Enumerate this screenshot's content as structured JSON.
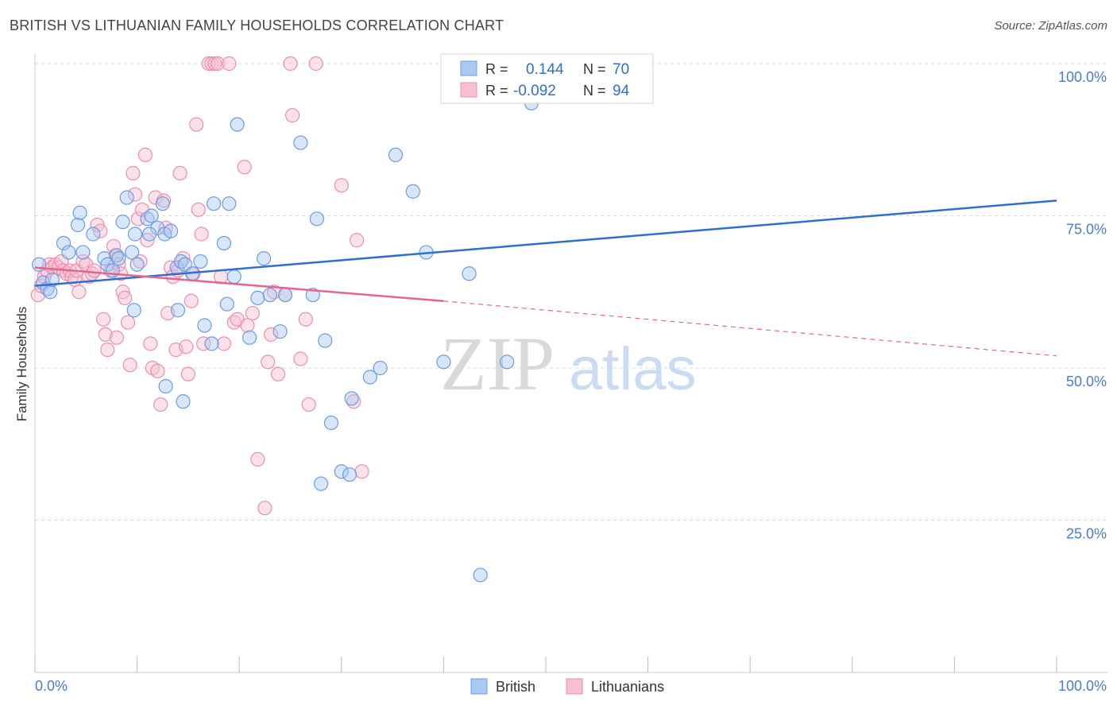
{
  "header": {
    "title": "BRITISH VS LITHUANIAN FAMILY HOUSEHOLDS CORRELATION CHART",
    "source": "Source: ZipAtlas.com"
  },
  "watermark": {
    "zip": "ZIP",
    "atlas": "atlas"
  },
  "legend_box": {
    "rows": [
      {
        "r_label": "R =",
        "r_value": "0.144",
        "n_label": "N =",
        "n_value": "70",
        "color": "#7aa6e6"
      },
      {
        "r_label": "R =",
        "r_value": "-0.092",
        "n_label": "N =",
        "n_value": "94",
        "color": "#f1a1bb"
      }
    ]
  },
  "bottom_legend": {
    "british": "British",
    "lithuanians": "Lithuanians"
  },
  "colors": {
    "british_fill": "#a9c8f2",
    "british_stroke": "#6f9be0",
    "british_line": "#2f6fd0",
    "lith_fill": "#f7bfd0",
    "lith_stroke": "#ec8fae",
    "lith_line": "#e26592",
    "tick_label": "#4a7bd0",
    "grid": "#d9d9d9"
  },
  "chart_data": {
    "type": "scatter",
    "title": "BRITISH VS LITHUANIAN FAMILY HOUSEHOLDS CORRELATION CHART",
    "xlabel": "",
    "ylabel": "Family Households",
    "xlim": [
      0,
      100
    ],
    "ylim": [
      0,
      100
    ],
    "x_tick_labels": [
      "0.0%",
      "100.0%"
    ],
    "y_tick_labels": [
      "25.0%",
      "50.0%",
      "75.0%",
      "100.0%"
    ],
    "y_ticks": [
      25,
      50,
      75,
      100
    ],
    "grid": true,
    "legend_position": "top-center",
    "series": [
      {
        "name": "British",
        "r": 0.144,
        "n": 70,
        "trend": {
          "x": [
            0,
            100
          ],
          "y": [
            63.5,
            77.5
          ]
        },
        "points": [
          [
            0.4,
            67
          ],
          [
            0.8,
            64
          ],
          [
            1.2,
            63
          ],
          [
            1.5,
            62.5
          ],
          [
            1.7,
            64.5
          ],
          [
            2.8,
            70.5
          ],
          [
            3.3,
            69
          ],
          [
            4.2,
            73.5
          ],
          [
            4.4,
            75.5
          ],
          [
            4.7,
            69
          ],
          [
            5.7,
            72
          ],
          [
            6.8,
            68
          ],
          [
            7.1,
            67
          ],
          [
            8.0,
            68.5
          ],
          [
            8.2,
            68
          ],
          [
            7.6,
            66
          ],
          [
            8.6,
            74
          ],
          [
            9.0,
            78
          ],
          [
            9.5,
            69
          ],
          [
            10.0,
            67
          ],
          [
            11.0,
            74.5
          ],
          [
            11.4,
            75
          ],
          [
            12.0,
            73
          ],
          [
            9.8,
            72
          ],
          [
            11.2,
            72
          ],
          [
            12.5,
            77
          ],
          [
            12.7,
            72
          ],
          [
            13.3,
            72.5
          ],
          [
            13.9,
            66.5
          ],
          [
            14.3,
            67.5
          ],
          [
            14.7,
            67
          ],
          [
            15.4,
            65.5
          ],
          [
            16.2,
            67.5
          ],
          [
            16.6,
            57
          ],
          [
            17.3,
            54
          ],
          [
            17.5,
            77
          ],
          [
            18.5,
            70.5
          ],
          [
            18.8,
            60.5
          ],
          [
            19.0,
            77
          ],
          [
            19.5,
            65
          ],
          [
            19.8,
            90
          ],
          [
            21.0,
            55
          ],
          [
            21.8,
            61.5
          ],
          [
            22.4,
            68
          ],
          [
            23.0,
            62
          ],
          [
            24.0,
            56
          ],
          [
            26.0,
            87
          ],
          [
            27.2,
            62
          ],
          [
            27.6,
            74.5
          ],
          [
            28.4,
            54.5
          ],
          [
            29.0,
            41
          ],
          [
            30.0,
            33
          ],
          [
            30.8,
            32.5
          ],
          [
            31.0,
            45
          ],
          [
            32.8,
            48.5
          ],
          [
            33.8,
            50
          ],
          [
            35.3,
            85
          ],
          [
            37.0,
            79
          ],
          [
            38.3,
            69
          ],
          [
            40.0,
            51
          ],
          [
            42.5,
            65.5
          ],
          [
            43.6,
            16
          ],
          [
            46.2,
            51
          ],
          [
            48.6,
            93.5
          ],
          [
            9.7,
            59.5
          ],
          [
            14.0,
            59.5
          ],
          [
            12.8,
            47
          ],
          [
            14.5,
            44.5
          ],
          [
            24.5,
            62
          ],
          [
            28.0,
            31
          ]
        ]
      },
      {
        "name": "Lithuanians",
        "r": -0.092,
        "n": 94,
        "trend": {
          "x": [
            0,
            40
          ],
          "y": [
            66.5,
            61
          ],
          "dashed_to": {
            "x": 100,
            "y": 52
          }
        },
        "points": [
          [
            0.3,
            62
          ],
          [
            0.6,
            63.5
          ],
          [
            0.9,
            65
          ],
          [
            1.2,
            66
          ],
          [
            1.4,
            67
          ],
          [
            1.7,
            66.5
          ],
          [
            2.0,
            67
          ],
          [
            2.3,
            66.5
          ],
          [
            2.6,
            67.5
          ],
          [
            2.8,
            66
          ],
          [
            3.1,
            65.5
          ],
          [
            3.4,
            66
          ],
          [
            3.6,
            65
          ],
          [
            3.9,
            64.5
          ],
          [
            4.1,
            66
          ],
          [
            4.3,
            62.5
          ],
          [
            4.7,
            67.5
          ],
          [
            5.0,
            67
          ],
          [
            5.3,
            65
          ],
          [
            5.6,
            65.5
          ],
          [
            5.8,
            66
          ],
          [
            6.1,
            73.5
          ],
          [
            6.4,
            72.5
          ],
          [
            6.7,
            58
          ],
          [
            6.9,
            55.5
          ],
          [
            7.1,
            53
          ],
          [
            7.4,
            66
          ],
          [
            7.7,
            70
          ],
          [
            7.9,
            68.5
          ],
          [
            8.2,
            67
          ],
          [
            8.4,
            65.5
          ],
          [
            8.6,
            62.5
          ],
          [
            8.8,
            61.5
          ],
          [
            9.1,
            57.5
          ],
          [
            9.3,
            50.5
          ],
          [
            9.6,
            82
          ],
          [
            9.8,
            78.5
          ],
          [
            10.1,
            74.5
          ],
          [
            10.3,
            67.5
          ],
          [
            10.5,
            76
          ],
          [
            10.8,
            85
          ],
          [
            11.0,
            71
          ],
          [
            11.3,
            54
          ],
          [
            11.5,
            50
          ],
          [
            11.8,
            78
          ],
          [
            12.0,
            49.5
          ],
          [
            12.3,
            44
          ],
          [
            12.6,
            77.5
          ],
          [
            12.8,
            73
          ],
          [
            13.0,
            59
          ],
          [
            13.3,
            66.5
          ],
          [
            13.5,
            65
          ],
          [
            13.8,
            53
          ],
          [
            14.0,
            66
          ],
          [
            14.2,
            82
          ],
          [
            14.5,
            68
          ],
          [
            14.8,
            53.5
          ],
          [
            15.0,
            49
          ],
          [
            15.3,
            61
          ],
          [
            15.5,
            65.5
          ],
          [
            15.8,
            90
          ],
          [
            16.0,
            76
          ],
          [
            16.3,
            72
          ],
          [
            16.5,
            54
          ],
          [
            17.0,
            100
          ],
          [
            17.3,
            100
          ],
          [
            17.6,
            100
          ],
          [
            17.9,
            100
          ],
          [
            18.2,
            65
          ],
          [
            18.5,
            54
          ],
          [
            19.0,
            100
          ],
          [
            19.5,
            57.5
          ],
          [
            19.8,
            58
          ],
          [
            20.5,
            83
          ],
          [
            20.8,
            57
          ],
          [
            21.3,
            59
          ],
          [
            21.8,
            35
          ],
          [
            22.5,
            27
          ],
          [
            22.8,
            51
          ],
          [
            23.1,
            55.5
          ],
          [
            23.4,
            62.5
          ],
          [
            23.8,
            49
          ],
          [
            24.5,
            62
          ],
          [
            25.0,
            100
          ],
          [
            25.2,
            91.5
          ],
          [
            26.0,
            51.5
          ],
          [
            26.5,
            58
          ],
          [
            26.8,
            44
          ],
          [
            27.5,
            100
          ],
          [
            30.0,
            80
          ],
          [
            31.2,
            44.5
          ],
          [
            31.5,
            71
          ],
          [
            32.0,
            33
          ],
          [
            8.0,
            55
          ]
        ]
      }
    ]
  }
}
